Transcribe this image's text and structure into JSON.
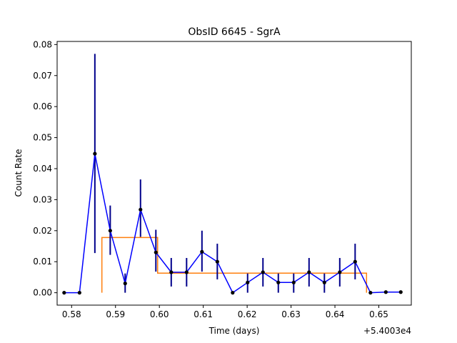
{
  "chart_data": {
    "type": "line",
    "title": "ObsID 6645 - SgrA",
    "xlabel": "Time (days)",
    "ylabel": "Count Rate",
    "x_offset_label": "+5.4003e4",
    "xlim": [
      0.5767,
      0.6574
    ],
    "ylim": [
      -0.004,
      0.081
    ],
    "x_ticks": [
      0.58,
      0.59,
      0.6,
      0.61,
      0.62,
      0.63,
      0.64,
      0.65
    ],
    "x_tick_labels": [
      "0.58",
      "0.59",
      "0.60",
      "0.61",
      "0.62",
      "0.63",
      "0.64",
      "0.65"
    ],
    "y_ticks": [
      0.0,
      0.01,
      0.02,
      0.03,
      0.04,
      0.05,
      0.06,
      0.07,
      0.08
    ],
    "y_tick_labels": [
      "0.00",
      "0.01",
      "0.02",
      "0.03",
      "0.04",
      "0.05",
      "0.06",
      "0.07",
      "0.08"
    ],
    "grid": false,
    "series": [
      {
        "color": "#0000ff",
        "marker_color": "#000000",
        "x": [
          0.5783,
          0.5818,
          0.5853,
          0.5888,
          0.5922,
          0.5957,
          0.5992,
          0.6027,
          0.6062,
          0.6097,
          0.6132,
          0.6167,
          0.6201,
          0.6236,
          0.6271,
          0.6306,
          0.6341,
          0.6376,
          0.6411,
          0.6446,
          0.6481,
          0.6516,
          0.655
        ],
        "y": [
          0.0,
          0.0,
          0.0448,
          0.02,
          0.003,
          0.0268,
          0.013,
          0.0066,
          0.0066,
          0.0132,
          0.01,
          0.0,
          0.0033,
          0.0066,
          0.0033,
          0.0033,
          0.0066,
          0.0033,
          0.0066,
          0.01,
          0.0,
          0.0002,
          0.0002
        ],
        "err_low": [
          null,
          null,
          0.0128,
          0.0122,
          0.0,
          0.018,
          0.0068,
          0.002,
          0.002,
          0.0068,
          0.0043,
          null,
          0.0,
          0.002,
          0.0,
          0.0,
          0.002,
          0.0,
          0.002,
          0.0043,
          null,
          null,
          null
        ],
        "err_high": [
          null,
          null,
          0.077,
          0.0281,
          0.0062,
          0.0365,
          0.0203,
          0.0112,
          0.0112,
          0.02,
          0.0158,
          null,
          0.0062,
          0.0112,
          0.0062,
          0.0062,
          0.0112,
          0.0062,
          0.0112,
          0.0158,
          null,
          null,
          null
        ]
      }
    ],
    "blocks": {
      "color": "#ff7f0e",
      "edges": [
        0.5869,
        0.5996,
        0.6472
      ],
      "levels": [
        0.0178,
        0.0063
      ]
    }
  }
}
